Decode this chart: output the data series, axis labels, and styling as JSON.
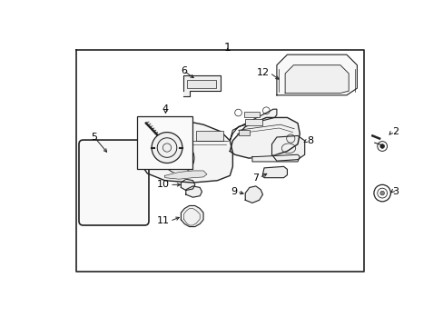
{
  "bg_color": "#ffffff",
  "border_color": "#222222",
  "line_color": "#222222",
  "text_color": "#000000",
  "fig_width": 4.89,
  "fig_height": 3.6,
  "dpi": 100
}
